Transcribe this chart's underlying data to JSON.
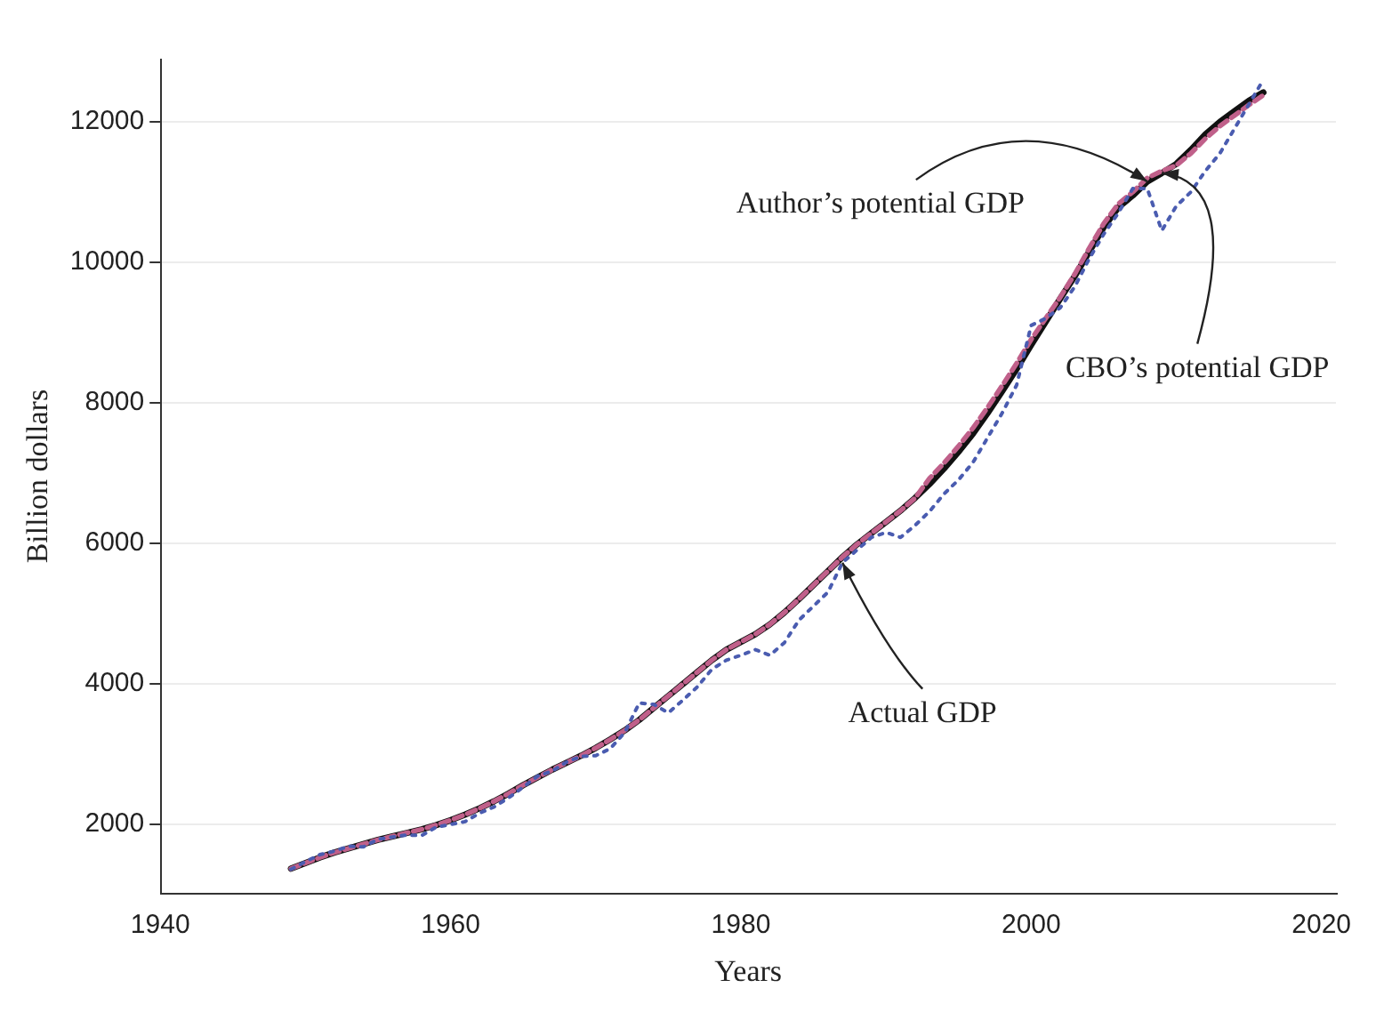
{
  "chart_data": {
    "type": "line",
    "xlabel": "Years",
    "ylabel": "Billion dollars",
    "x": [
      1949,
      1950,
      1951,
      1952,
      1953,
      1954,
      1955,
      1956,
      1957,
      1958,
      1959,
      1960,
      1961,
      1962,
      1963,
      1964,
      1965,
      1966,
      1967,
      1968,
      1969,
      1970,
      1971,
      1972,
      1973,
      1974,
      1975,
      1976,
      1977,
      1978,
      1979,
      1980,
      1981,
      1982,
      1983,
      1984,
      1985,
      1986,
      1987,
      1988,
      1989,
      1990,
      1991,
      1992,
      1993,
      1994,
      1995,
      1996,
      1997,
      1998,
      1999,
      2000,
      2001,
      2002,
      2003,
      2004,
      2005,
      2006,
      2007,
      2008,
      2009,
      2010,
      2011,
      2012,
      2013,
      2014,
      2015,
      2016
    ],
    "series": [
      {
        "color": "#111111",
        "line_style": "solid",
        "values": [
          1360,
          1440,
          1520,
          1590,
          1650,
          1710,
          1770,
          1820,
          1870,
          1920,
          1980,
          2050,
          2130,
          2220,
          2320,
          2430,
          2550,
          2660,
          2770,
          2870,
          2970,
          3080,
          3200,
          3330,
          3480,
          3650,
          3820,
          3990,
          4160,
          4330,
          4480,
          4590,
          4700,
          4840,
          5010,
          5200,
          5400,
          5600,
          5800,
          5980,
          6140,
          6300,
          6460,
          6640,
          6840,
          7060,
          7300,
          7560,
          7850,
          8160,
          8480,
          8820,
          9150,
          9480,
          9800,
          10150,
          10500,
          10780,
          10950,
          11150,
          11270,
          11400,
          11600,
          11820,
          12000,
          12150,
          12300,
          12420
        ]
      },
      {
        "color": "#c0608a",
        "line_style": "dashed",
        "values": [
          1360,
          1440,
          1520,
          1590,
          1650,
          1710,
          1770,
          1820,
          1870,
          1920,
          1980,
          2050,
          2130,
          2220,
          2320,
          2430,
          2550,
          2660,
          2770,
          2870,
          2970,
          3080,
          3200,
          3330,
          3480,
          3650,
          3820,
          3990,
          4160,
          4330,
          4480,
          4590,
          4700,
          4840,
          5010,
          5200,
          5400,
          5600,
          5800,
          5980,
          6140,
          6300,
          6460,
          6640,
          6920,
          7140,
          7380,
          7640,
          7930,
          8240,
          8560,
          8900,
          9200,
          9500,
          9830,
          10200,
          10550,
          10830,
          11000,
          11200,
          11300,
          11380,
          11550,
          11760,
          11940,
          12090,
          12240,
          12380
        ]
      },
      {
        "color": "#4a5cb0",
        "line_style": "dotted",
        "values": [
          1350,
          1460,
          1560,
          1610,
          1680,
          1670,
          1780,
          1810,
          1840,
          1830,
          1950,
          1990,
          2030,
          2150,
          2240,
          2370,
          2520,
          2680,
          2750,
          2880,
          2960,
          2970,
          3070,
          3300,
          3720,
          3700,
          3580,
          3760,
          3950,
          4200,
          4330,
          4400,
          4480,
          4400,
          4580,
          4900,
          5100,
          5300,
          5720,
          5900,
          6080,
          6150,
          6080,
          6250,
          6450,
          6700,
          6900,
          7150,
          7500,
          7850,
          8250,
          9100,
          9200,
          9350,
          9650,
          10050,
          10400,
          10700,
          11050,
          11050,
          10450,
          10800,
          11000,
          11300,
          11550,
          11900,
          12250,
          12600
        ]
      }
    ],
    "annotations": [
      {
        "text": "Author’s potential GDP",
        "x": 2008,
        "y": 11150
      },
      {
        "text": "CBO’s potential GDP",
        "x": 2009,
        "y": 11270
      },
      {
        "text": "Actual GDP",
        "x": 1987,
        "y": 5720
      }
    ],
    "xlim": [
      1940,
      2021
    ],
    "xticks": [
      1940,
      1960,
      1980,
      2000,
      2020
    ],
    "ylim": [
      1000,
      12900
    ],
    "yticks": [
      2000,
      4000,
      6000,
      8000,
      10000,
      12000
    ],
    "grid": "y",
    "marker": "none"
  }
}
